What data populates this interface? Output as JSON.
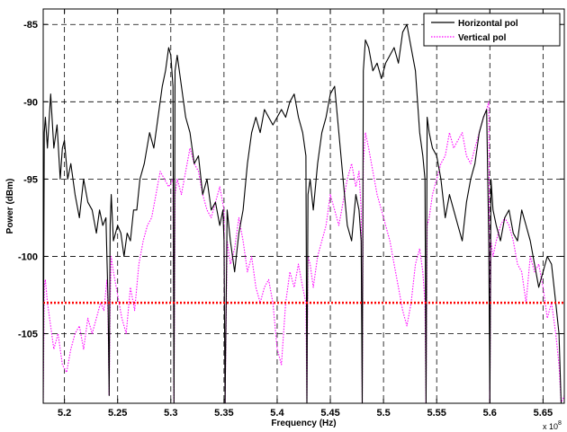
{
  "chart_data": {
    "type": "line",
    "xlabel": "Frequency (Hz)",
    "ylabel": "Power (dBm)",
    "x_exponent_label": "x 10",
    "x_exponent_power": "8",
    "xlim": [
      5.18,
      5.67
    ],
    "ylim": [
      -109.5,
      -84
    ],
    "xticks": [
      5.2,
      5.25,
      5.3,
      5.35,
      5.4,
      5.45,
      5.5,
      5.55,
      5.6,
      5.65
    ],
    "xtick_labels": [
      "5.2",
      "5.25",
      "5.3",
      "5.35",
      "5.4",
      "5.45",
      "5.5",
      "5.55",
      "5.6",
      "5.65"
    ],
    "yticks": [
      -105,
      -100,
      -95,
      -90,
      -85
    ],
    "ytick_labels": [
      "-105",
      "-100",
      "-95",
      "-90",
      "-85"
    ],
    "grid": true,
    "legend_position": "top-right",
    "threshold": {
      "y": -103,
      "color": "#ff0000",
      "style": "dotted"
    },
    "series": [
      {
        "name": "Horizontal pol",
        "color": "#000000",
        "style": "solid",
        "x": [
          5.18,
          5.181,
          5.182,
          5.184,
          5.187,
          5.19,
          5.193,
          5.196,
          5.198,
          5.2,
          5.203,
          5.206,
          5.21,
          5.214,
          5.218,
          5.222,
          5.226,
          5.23,
          5.233,
          5.236,
          5.239,
          5.241,
          5.242,
          5.243,
          5.244,
          5.246,
          5.25,
          5.253,
          5.256,
          5.259,
          5.262,
          5.265,
          5.268,
          5.271,
          5.275,
          5.28,
          5.284,
          5.288,
          5.292,
          5.295,
          5.298,
          5.3,
          5.302,
          5.303,
          5.304,
          5.306,
          5.31,
          5.314,
          5.318,
          5.322,
          5.326,
          5.33,
          5.334,
          5.338,
          5.342,
          5.346,
          5.349,
          5.35,
          5.351,
          5.353,
          5.356,
          5.36,
          5.364,
          5.368,
          5.372,
          5.376,
          5.38,
          5.384,
          5.388,
          5.392,
          5.396,
          5.4,
          5.404,
          5.408,
          5.412,
          5.416,
          5.42,
          5.424,
          5.427,
          5.428,
          5.429,
          5.431,
          5.434,
          5.438,
          5.442,
          5.446,
          5.45,
          5.454,
          5.458,
          5.462,
          5.466,
          5.47,
          5.474,
          5.477,
          5.479,
          5.48,
          5.481,
          5.483,
          5.486,
          5.49,
          5.494,
          5.498,
          5.502,
          5.506,
          5.51,
          5.514,
          5.518,
          5.522,
          5.526,
          5.53,
          5.534,
          5.537,
          5.539,
          5.54,
          5.541,
          5.543,
          5.546,
          5.55,
          5.554,
          5.558,
          5.562,
          5.566,
          5.57,
          5.574,
          5.578,
          5.582,
          5.586,
          5.59,
          5.594,
          5.597,
          5.599,
          5.6,
          5.601,
          5.603,
          5.606,
          5.61,
          5.614,
          5.618,
          5.622,
          5.626,
          5.63,
          5.634,
          5.638,
          5.642,
          5.646,
          5.65,
          5.654,
          5.658,
          5.662,
          5.665,
          5.667,
          5.67
        ],
        "y": [
          -109.5,
          -92,
          -91,
          -93,
          -89.5,
          -93,
          -91.5,
          -95,
          -93,
          -92.5,
          -95,
          -94,
          -96,
          -97.5,
          -95,
          -96.5,
          -97,
          -98.5,
          -97,
          -98,
          -97.5,
          -103,
          -109,
          -98,
          -96,
          -99,
          -98,
          -98.5,
          -100,
          -98.5,
          -99,
          -97,
          -97,
          -95,
          -94,
          -92,
          -93,
          -91,
          -89,
          -88,
          -86.5,
          -87,
          -89,
          -109.5,
          -88,
          -87,
          -89,
          -91,
          -92,
          -94,
          -93.5,
          -96,
          -95,
          -97,
          -96.5,
          -98,
          -97,
          -99,
          -109.5,
          -97,
          -99,
          -101,
          -98.5,
          -97,
          -94,
          -92,
          -91,
          -92,
          -90.5,
          -91,
          -91.5,
          -91,
          -90.5,
          -91,
          -90,
          -89.5,
          -91,
          -92,
          -93.5,
          -109.5,
          -96,
          -95,
          -97,
          -94,
          -92,
          -91,
          -89.5,
          -89,
          -92,
          -95,
          -98,
          -99,
          -96,
          -97,
          -99,
          -109.5,
          -88,
          -86,
          -86.5,
          -88,
          -87.5,
          -88.5,
          -87.5,
          -87,
          -86.5,
          -87.5,
          -85.5,
          -85,
          -86.5,
          -88,
          -92,
          -93.5,
          -95,
          -109.5,
          -91,
          -92,
          -93,
          -93.5,
          -95,
          -97.5,
          -96,
          -97,
          -98,
          -99,
          -96.5,
          -95,
          -94,
          -92,
          -91,
          -90.5,
          -99,
          -109.5,
          -95,
          -97,
          -98,
          -99,
          -97.5,
          -97,
          -98.5,
          -99,
          -97,
          -98,
          -99,
          -100.5,
          -102,
          -101,
          -100,
          -100.5,
          -103,
          -105,
          -109.5,
          -109.5
        ]
      },
      {
        "name": "Vertical pol",
        "color": "#ff00ff",
        "style": "dotted",
        "x": [
          5.18,
          5.181,
          5.182,
          5.184,
          5.187,
          5.19,
          5.194,
          5.198,
          5.202,
          5.206,
          5.21,
          5.214,
          5.218,
          5.222,
          5.226,
          5.23,
          5.234,
          5.237,
          5.24,
          5.241,
          5.242,
          5.243,
          5.244,
          5.246,
          5.25,
          5.254,
          5.258,
          5.262,
          5.266,
          5.27,
          5.274,
          5.278,
          5.282,
          5.286,
          5.29,
          5.294,
          5.298,
          5.302,
          5.303,
          5.304,
          5.306,
          5.31,
          5.314,
          5.318,
          5.322,
          5.326,
          5.33,
          5.334,
          5.338,
          5.342,
          5.346,
          5.35,
          5.351,
          5.353,
          5.356,
          5.36,
          5.364,
          5.368,
          5.372,
          5.376,
          5.38,
          5.384,
          5.388,
          5.392,
          5.396,
          5.4,
          5.404,
          5.408,
          5.412,
          5.416,
          5.42,
          5.424,
          5.427,
          5.428,
          5.429,
          5.431,
          5.434,
          5.438,
          5.442,
          5.446,
          5.45,
          5.454,
          5.458,
          5.462,
          5.466,
          5.47,
          5.474,
          5.477,
          5.479,
          5.48,
          5.481,
          5.483,
          5.486,
          5.49,
          5.494,
          5.498,
          5.502,
          5.506,
          5.51,
          5.514,
          5.518,
          5.522,
          5.526,
          5.53,
          5.534,
          5.537,
          5.539,
          5.54,
          5.541,
          5.543,
          5.546,
          5.55,
          5.554,
          5.558,
          5.562,
          5.566,
          5.57,
          5.574,
          5.578,
          5.582,
          5.586,
          5.59,
          5.594,
          5.597,
          5.599,
          5.6,
          5.601,
          5.603,
          5.606,
          5.61,
          5.614,
          5.618,
          5.622,
          5.626,
          5.63,
          5.634,
          5.638,
          5.642,
          5.646,
          5.65,
          5.654,
          5.658,
          5.662,
          5.665,
          5.667,
          5.67
        ],
        "y": [
          -109.5,
          -102,
          -101.5,
          -103,
          -104.5,
          -106,
          -105,
          -107,
          -107.5,
          -106,
          -105,
          -104.5,
          -106,
          -104,
          -105,
          -104,
          -103,
          -103.5,
          -101.5,
          -104,
          -109,
          -103,
          -100,
          -101,
          -102.5,
          -104,
          -105,
          -102,
          -103.5,
          -100.5,
          -99,
          -98,
          -97.5,
          -96,
          -94.5,
          -95,
          -95.5,
          -95,
          -109.5,
          -96,
          -95,
          -96,
          -94.5,
          -93,
          -94,
          -94.5,
          -96,
          -97,
          -97.5,
          -96.5,
          -95.5,
          -97,
          -109.5,
          -99,
          -100.5,
          -99.5,
          -97.5,
          -99,
          -101,
          -100,
          -102,
          -103,
          -102,
          -101.5,
          -103,
          -106,
          -107,
          -103,
          -101,
          -102,
          -100.5,
          -102,
          -103,
          -109.5,
          -100,
          -100.5,
          -102,
          -100,
          -99,
          -98,
          -96,
          -97,
          -98,
          -96.5,
          -95,
          -94,
          -95.5,
          -94.5,
          -97,
          -109.5,
          -94,
          -92,
          -93,
          -94.5,
          -96,
          -97,
          -98,
          -99,
          -100.5,
          -102,
          -103.5,
          -104.5,
          -103,
          -100.5,
          -99.5,
          -101,
          -103,
          -109.5,
          -98,
          -97.5,
          -96,
          -95,
          -94,
          -93.5,
          -92,
          -93,
          -92.5,
          -92,
          -93.5,
          -94,
          -93,
          -92,
          -91,
          -90.5,
          -90,
          -109.5,
          -99,
          -100,
          -99,
          -98,
          -97.5,
          -98,
          -99,
          -100.5,
          -101,
          -103,
          -100,
          -101,
          -100.5,
          -102,
          -104,
          -103,
          -105,
          -107,
          -109.5,
          -109
        ]
      }
    ]
  }
}
